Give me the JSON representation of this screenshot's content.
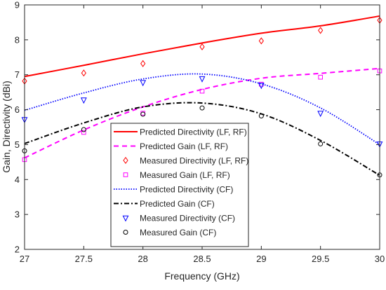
{
  "chart_data": {
    "type": "line",
    "title": "",
    "xlabel": "Frequency (GHz)",
    "ylabel": "Gain, Directivity (dBi)",
    "xlim": [
      27,
      30
    ],
    "ylim": [
      2,
      9
    ],
    "xticks": [
      27,
      27.5,
      28,
      28.5,
      29,
      29.5,
      30
    ],
    "xtick_labels": [
      "27",
      "27.5",
      "28",
      "28.5",
      "29",
      "29.5",
      "30"
    ],
    "yticks": [
      2,
      3,
      4,
      5,
      6,
      7,
      8,
      9
    ],
    "ytick_labels": [
      "2",
      "3",
      "4",
      "5",
      "6",
      "7",
      "8",
      "9"
    ],
    "grid": false,
    "legend_position": "lower-center",
    "x": [
      27,
      27.5,
      28,
      28.5,
      29,
      29.5,
      30
    ],
    "series": [
      {
        "name": "Predicted Directivity (LF, RF)",
        "kind": "line",
        "style": "solid",
        "color": "#ff0000",
        "marker": "none",
        "values": [
          6.95,
          7.27,
          7.6,
          7.91,
          8.19,
          8.4,
          8.68
        ]
      },
      {
        "name": "Predicted Gain (LF, RF)",
        "kind": "line",
        "style": "dashed",
        "color": "#ff00ff",
        "marker": "none",
        "values": [
          4.62,
          5.42,
          6.08,
          6.58,
          6.9,
          7.04,
          7.18
        ]
      },
      {
        "name": "Measured Directivity (LF, RF)",
        "kind": "marker",
        "style": "none",
        "color": "#ff0000",
        "marker": "diamond",
        "values": [
          6.82,
          7.05,
          7.32,
          7.8,
          7.97,
          8.27,
          8.56
        ]
      },
      {
        "name": "Measured Gain (LF, RF)",
        "kind": "marker",
        "style": "none",
        "color": "#ff00ff",
        "marker": "square",
        "values": [
          4.57,
          5.35,
          5.9,
          6.53,
          6.73,
          6.93,
          7.11
        ]
      },
      {
        "name": "Predicted Directivity (CF)",
        "kind": "line",
        "style": "dotted",
        "color": "#0000ff",
        "marker": "none",
        "values": [
          5.98,
          6.48,
          6.88,
          7.02,
          6.74,
          6.05,
          5.0
        ]
      },
      {
        "name": "Predicted Gain (CF)",
        "kind": "line",
        "style": "dashdot",
        "color": "#000000",
        "marker": "none",
        "values": [
          5.03,
          5.62,
          6.08,
          6.19,
          5.88,
          5.12,
          4.12
        ]
      },
      {
        "name": "Measured Directivity (CF)",
        "kind": "marker",
        "style": "none",
        "color": "#0000ff",
        "marker": "triangle-down",
        "values": [
          5.72,
          6.28,
          6.78,
          6.89,
          6.7,
          5.9,
          5.02
        ]
      },
      {
        "name": "Measured Gain (CF)",
        "kind": "marker",
        "style": "none",
        "color": "#000000",
        "marker": "circle",
        "values": [
          4.82,
          5.43,
          5.87,
          6.05,
          5.82,
          5.02,
          4.13
        ]
      }
    ]
  }
}
